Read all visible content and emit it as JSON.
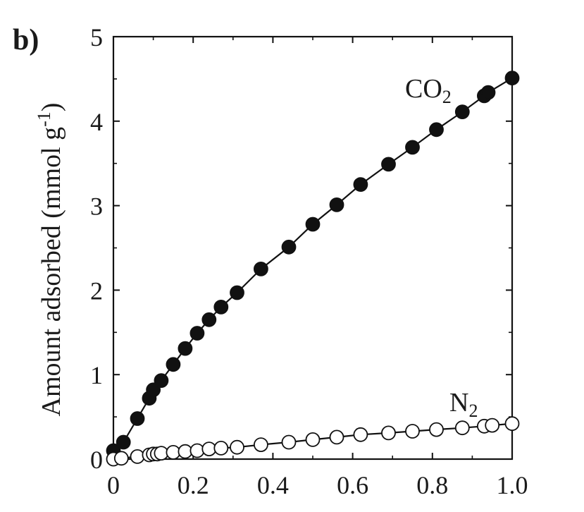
{
  "panel_label": "b)",
  "chart_data": {
    "type": "scatter",
    "title": "",
    "xlabel": "",
    "ylabel": "Amount adsorbed (mmol g",
    "ylabel_superscript": "-1",
    "ylabel_close": ")",
    "xlim": [
      0,
      1.0
    ],
    "ylim": [
      0,
      5
    ],
    "x_ticks": [
      "0",
      "0.2",
      "0.4",
      "0.6",
      "0.8",
      "1.0"
    ],
    "y_ticks": [
      "0",
      "1",
      "2",
      "3",
      "4",
      "5"
    ],
    "grid": false,
    "series": [
      {
        "name": "CO2",
        "label_main": "CO",
        "label_sub": "2",
        "marker": "filled-circle",
        "color": "#111111",
        "x": [
          0.0,
          0.025,
          0.06,
          0.09,
          0.1,
          0.12,
          0.15,
          0.18,
          0.21,
          0.24,
          0.27,
          0.31,
          0.37,
          0.44,
          0.5,
          0.56,
          0.62,
          0.69,
          0.75,
          0.81,
          0.875,
          0.93,
          0.94,
          1.0
        ],
        "y": [
          0.1,
          0.2,
          0.48,
          0.72,
          0.82,
          0.93,
          1.12,
          1.31,
          1.49,
          1.65,
          1.8,
          1.97,
          2.25,
          2.51,
          2.78,
          3.01,
          3.25,
          3.49,
          3.69,
          3.9,
          4.11,
          4.3,
          4.34,
          4.51
        ]
      },
      {
        "name": "N2",
        "label_main": "N",
        "label_sub": "2",
        "marker": "open-circle",
        "color": "#111111",
        "x": [
          0.0,
          0.02,
          0.06,
          0.09,
          0.1,
          0.11,
          0.12,
          0.15,
          0.18,
          0.21,
          0.24,
          0.27,
          0.31,
          0.37,
          0.44,
          0.5,
          0.56,
          0.62,
          0.69,
          0.75,
          0.81,
          0.875,
          0.93,
          0.95,
          1.0
        ],
        "y": [
          0.0,
          0.01,
          0.03,
          0.05,
          0.06,
          0.06,
          0.07,
          0.08,
          0.09,
          0.1,
          0.12,
          0.13,
          0.14,
          0.17,
          0.2,
          0.23,
          0.26,
          0.29,
          0.31,
          0.33,
          0.35,
          0.37,
          0.39,
          0.4,
          0.42
        ]
      }
    ]
  }
}
